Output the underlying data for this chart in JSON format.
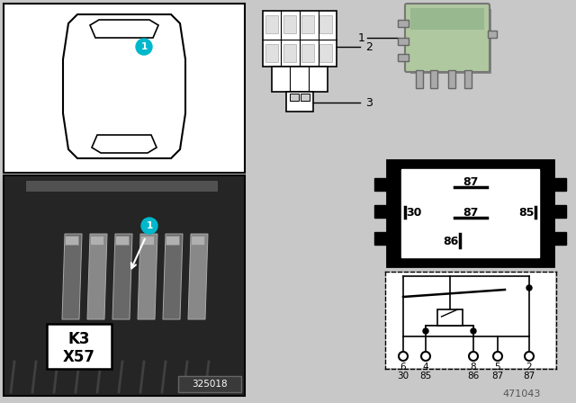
{
  "bg": "#c8c8c8",
  "white": "#ffffff",
  "black": "#000000",
  "teal": "#00b8cc",
  "relay_green": "#b0c8a0",
  "photo_num": "325018",
  "part_num": "471043",
  "k3": "K3",
  "x57": "X57",
  "label1": "1",
  "label2": "2",
  "label3": "3",
  "pin_row1": [
    "6",
    "4",
    "8",
    "5",
    "2"
  ],
  "pin_row2": [
    "30",
    "85",
    "86",
    "87",
    "87"
  ],
  "terminal_top": "87",
  "terminal_mid_l": "30",
  "terminal_mid_c": "87",
  "terminal_mid_r": "85",
  "terminal_bot": "86"
}
